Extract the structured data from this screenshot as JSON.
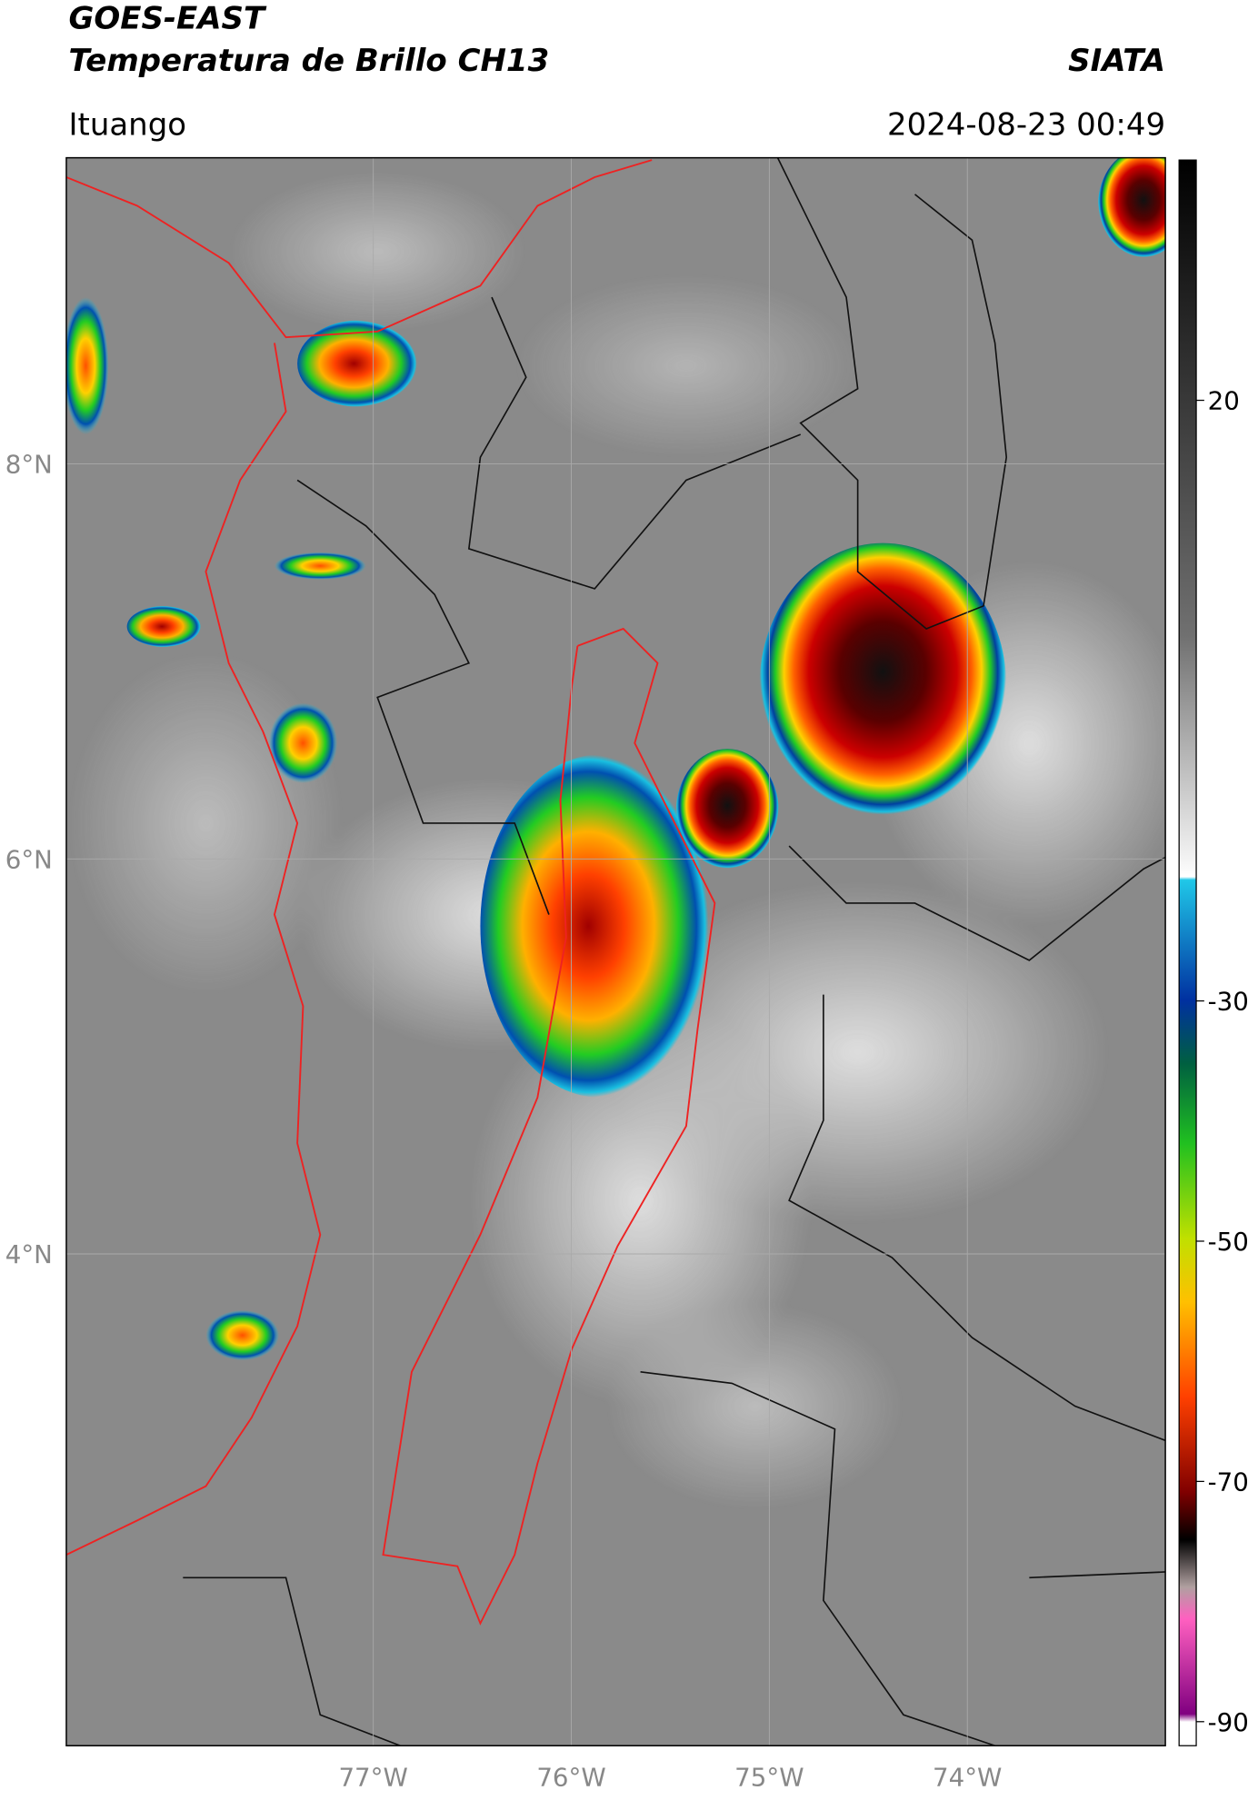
{
  "header": {
    "title": "GOES-EAST",
    "subtitle": "Temperatura de Brillo CH13",
    "source": "SIATA",
    "location": "Ituango",
    "datetime": "2024-08-23 00:49"
  },
  "map": {
    "lonlim": [
      -78.55,
      -73.0
    ],
    "latlim": [
      1.51,
      9.55
    ],
    "lat_ticks": [
      {
        "value": 8,
        "label": "8°N"
      },
      {
        "value": 6,
        "label": "6°N"
      },
      {
        "value": 4,
        "label": "4°N"
      }
    ],
    "lon_ticks": [
      {
        "value": -77,
        "label": "77°W"
      },
      {
        "value": -76,
        "label": "76°W"
      },
      {
        "value": -75,
        "label": "75°W"
      },
      {
        "value": -74,
        "label": "74°W"
      }
    ]
  },
  "colorbar": {
    "lim": [
      -92,
      40
    ],
    "ticks": [
      20,
      -30,
      -50,
      -70,
      -90
    ]
  }
}
